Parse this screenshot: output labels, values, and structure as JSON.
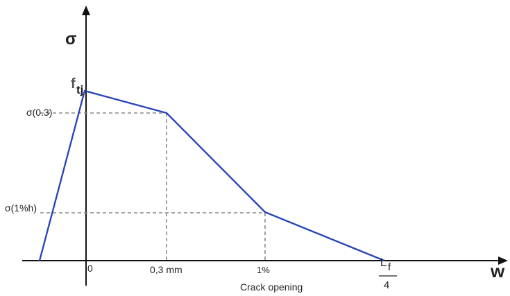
{
  "y_axis_symbol": "σ",
  "x_axis_symbol": "w",
  "peak_label": {
    "main": "f",
    "sub": "tj"
  },
  "y_tick_labels": {
    "sigma_03": "σ(0.3)",
    "sigma_1pct": "σ(1%h)"
  },
  "x_tick_labels": {
    "zero": "0",
    "w_03": "0,3 mm",
    "w_1pct": "1%",
    "lf_numerator": "L",
    "lf_sub": "f",
    "lf_denominator": "4"
  },
  "x_axis_caption": "Crack opening",
  "colors": {
    "curve": "#2a46b8",
    "axes": "#111111",
    "guides": "#888888"
  },
  "chart_data": {
    "type": "line",
    "x_categories": [
      "0",
      "0,3 mm",
      "1%",
      "Lf/4"
    ],
    "y_categories": [
      "σ(1%h)",
      "σ(0.3)",
      "ftj"
    ],
    "points": [
      {
        "x": "0",
        "y": "ftj"
      },
      {
        "x": "0,3 mm",
        "y": "σ(0.3)"
      },
      {
        "x": "1%",
        "y": "σ(1%h)"
      },
      {
        "x": "Lf/4",
        "y": "0"
      }
    ]
  }
}
